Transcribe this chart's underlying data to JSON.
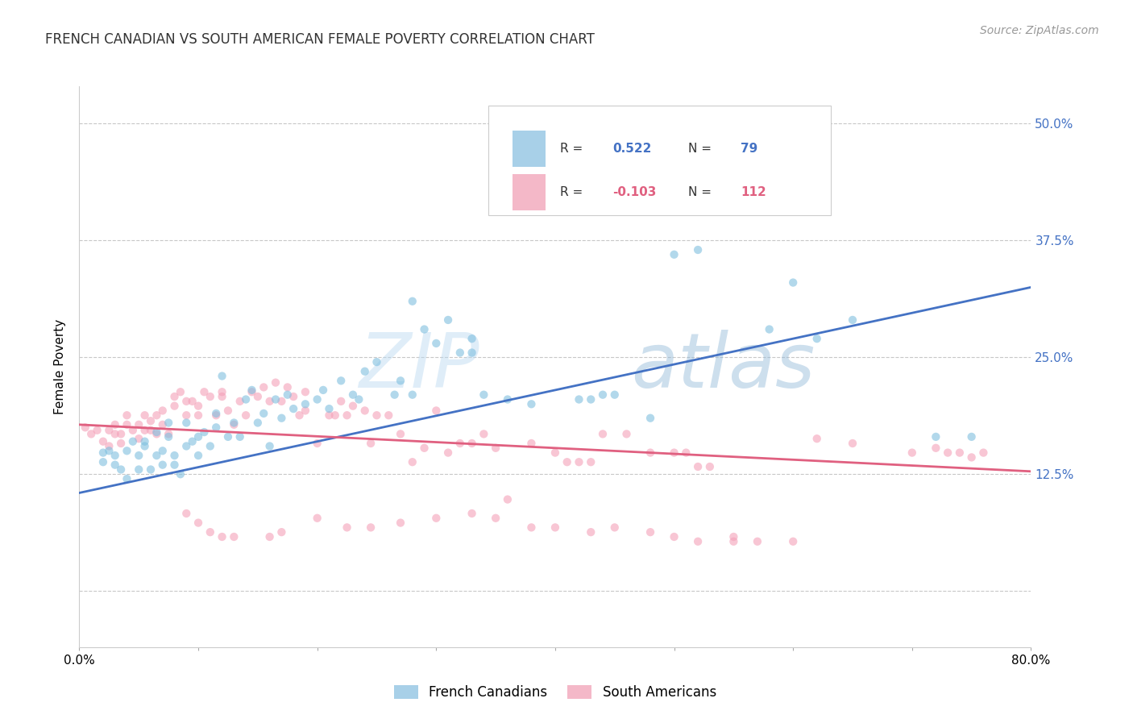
{
  "title": "FRENCH CANADIAN VS SOUTH AMERICAN FEMALE POVERTY CORRELATION CHART",
  "source": "Source: ZipAtlas.com",
  "ylabel": "Female Poverty",
  "xlim": [
    0.0,
    0.8
  ],
  "ylim": [
    -0.06,
    0.54
  ],
  "ytick_positions": [
    0.0,
    0.125,
    0.25,
    0.375,
    0.5
  ],
  "ytick_labels_right": [
    "",
    "12.5%",
    "25.0%",
    "37.5%",
    "50.0%"
  ],
  "xtick_positions": [
    0.0,
    0.1,
    0.2,
    0.3,
    0.4,
    0.5,
    0.6,
    0.7,
    0.8
  ],
  "xtick_labels": [
    "0.0%",
    "",
    "",
    "",
    "",
    "",
    "",
    "",
    "80.0%"
  ],
  "watermark_text": "ZIPatlas",
  "blue_color": "#7fbfdf",
  "pink_color": "#f4a0b8",
  "blue_line_color": "#4472c4",
  "pink_line_color": "#e06080",
  "legend_blue_color": "#a8d0e8",
  "legend_pink_color": "#f4b8c8",
  "grid_color": "#c8c8c8",
  "background_color": "#ffffff",
  "title_fontsize": 12,
  "axis_label_fontsize": 11,
  "tick_fontsize": 11,
  "source_fontsize": 10,
  "dot_size": 55,
  "dot_alpha": 0.6,
  "line_width": 2.0,
  "ytick_right_color": "#4472c4",
  "blue_line_x": [
    0.0,
    0.8
  ],
  "blue_line_y": [
    0.105,
    0.325
  ],
  "pink_line_x": [
    0.0,
    0.8
  ],
  "pink_line_y": [
    0.178,
    0.128
  ],
  "blue_scatter": [
    [
      0.02,
      0.148
    ],
    [
      0.02,
      0.138
    ],
    [
      0.025,
      0.15
    ],
    [
      0.03,
      0.135
    ],
    [
      0.03,
      0.145
    ],
    [
      0.035,
      0.13
    ],
    [
      0.04,
      0.15
    ],
    [
      0.04,
      0.12
    ],
    [
      0.045,
      0.16
    ],
    [
      0.05,
      0.145
    ],
    [
      0.05,
      0.13
    ],
    [
      0.055,
      0.16
    ],
    [
      0.055,
      0.155
    ],
    [
      0.06,
      0.13
    ],
    [
      0.065,
      0.145
    ],
    [
      0.065,
      0.17
    ],
    [
      0.07,
      0.15
    ],
    [
      0.07,
      0.135
    ],
    [
      0.075,
      0.165
    ],
    [
      0.075,
      0.18
    ],
    [
      0.08,
      0.145
    ],
    [
      0.08,
      0.135
    ],
    [
      0.085,
      0.125
    ],
    [
      0.09,
      0.155
    ],
    [
      0.09,
      0.18
    ],
    [
      0.095,
      0.16
    ],
    [
      0.1,
      0.145
    ],
    [
      0.1,
      0.165
    ],
    [
      0.105,
      0.17
    ],
    [
      0.11,
      0.155
    ],
    [
      0.115,
      0.175
    ],
    [
      0.115,
      0.19
    ],
    [
      0.12,
      0.23
    ],
    [
      0.125,
      0.165
    ],
    [
      0.13,
      0.18
    ],
    [
      0.135,
      0.165
    ],
    [
      0.14,
      0.205
    ],
    [
      0.145,
      0.215
    ],
    [
      0.15,
      0.18
    ],
    [
      0.155,
      0.19
    ],
    [
      0.16,
      0.155
    ],
    [
      0.165,
      0.205
    ],
    [
      0.17,
      0.185
    ],
    [
      0.175,
      0.21
    ],
    [
      0.18,
      0.195
    ],
    [
      0.19,
      0.2
    ],
    [
      0.2,
      0.205
    ],
    [
      0.205,
      0.215
    ],
    [
      0.21,
      0.195
    ],
    [
      0.22,
      0.225
    ],
    [
      0.23,
      0.21
    ],
    [
      0.235,
      0.205
    ],
    [
      0.24,
      0.235
    ],
    [
      0.25,
      0.245
    ],
    [
      0.265,
      0.21
    ],
    [
      0.27,
      0.225
    ],
    [
      0.28,
      0.21
    ],
    [
      0.28,
      0.31
    ],
    [
      0.29,
      0.28
    ],
    [
      0.3,
      0.265
    ],
    [
      0.31,
      0.29
    ],
    [
      0.32,
      0.255
    ],
    [
      0.33,
      0.27
    ],
    [
      0.33,
      0.255
    ],
    [
      0.34,
      0.21
    ],
    [
      0.36,
      0.205
    ],
    [
      0.38,
      0.2
    ],
    [
      0.42,
      0.205
    ],
    [
      0.43,
      0.205
    ],
    [
      0.44,
      0.21
    ],
    [
      0.45,
      0.21
    ],
    [
      0.48,
      0.185
    ],
    [
      0.5,
      0.36
    ],
    [
      0.52,
      0.365
    ],
    [
      0.58,
      0.28
    ],
    [
      0.6,
      0.33
    ],
    [
      0.62,
      0.27
    ],
    [
      0.65,
      0.29
    ],
    [
      0.72,
      0.165
    ],
    [
      0.75,
      0.165
    ]
  ],
  "pink_scatter": [
    [
      0.005,
      0.175
    ],
    [
      0.01,
      0.168
    ],
    [
      0.015,
      0.172
    ],
    [
      0.02,
      0.16
    ],
    [
      0.025,
      0.155
    ],
    [
      0.025,
      0.172
    ],
    [
      0.03,
      0.178
    ],
    [
      0.03,
      0.168
    ],
    [
      0.035,
      0.158
    ],
    [
      0.035,
      0.168
    ],
    [
      0.04,
      0.178
    ],
    [
      0.04,
      0.188
    ],
    [
      0.045,
      0.172
    ],
    [
      0.05,
      0.163
    ],
    [
      0.05,
      0.178
    ],
    [
      0.055,
      0.172
    ],
    [
      0.055,
      0.188
    ],
    [
      0.06,
      0.182
    ],
    [
      0.06,
      0.172
    ],
    [
      0.065,
      0.168
    ],
    [
      0.065,
      0.188
    ],
    [
      0.07,
      0.178
    ],
    [
      0.07,
      0.193
    ],
    [
      0.075,
      0.168
    ],
    [
      0.08,
      0.198
    ],
    [
      0.08,
      0.208
    ],
    [
      0.085,
      0.213
    ],
    [
      0.09,
      0.188
    ],
    [
      0.09,
      0.203
    ],
    [
      0.095,
      0.203
    ],
    [
      0.1,
      0.188
    ],
    [
      0.1,
      0.198
    ],
    [
      0.105,
      0.213
    ],
    [
      0.11,
      0.208
    ],
    [
      0.115,
      0.188
    ],
    [
      0.12,
      0.208
    ],
    [
      0.12,
      0.213
    ],
    [
      0.125,
      0.193
    ],
    [
      0.13,
      0.178
    ],
    [
      0.135,
      0.203
    ],
    [
      0.14,
      0.188
    ],
    [
      0.145,
      0.213
    ],
    [
      0.15,
      0.208
    ],
    [
      0.155,
      0.218
    ],
    [
      0.16,
      0.203
    ],
    [
      0.165,
      0.223
    ],
    [
      0.17,
      0.203
    ],
    [
      0.175,
      0.218
    ],
    [
      0.18,
      0.208
    ],
    [
      0.185,
      0.188
    ],
    [
      0.19,
      0.193
    ],
    [
      0.19,
      0.213
    ],
    [
      0.2,
      0.158
    ],
    [
      0.21,
      0.188
    ],
    [
      0.215,
      0.188
    ],
    [
      0.22,
      0.203
    ],
    [
      0.225,
      0.188
    ],
    [
      0.23,
      0.198
    ],
    [
      0.24,
      0.193
    ],
    [
      0.245,
      0.158
    ],
    [
      0.25,
      0.188
    ],
    [
      0.26,
      0.188
    ],
    [
      0.27,
      0.168
    ],
    [
      0.28,
      0.138
    ],
    [
      0.29,
      0.153
    ],
    [
      0.3,
      0.193
    ],
    [
      0.31,
      0.148
    ],
    [
      0.32,
      0.158
    ],
    [
      0.33,
      0.158
    ],
    [
      0.34,
      0.168
    ],
    [
      0.35,
      0.153
    ],
    [
      0.36,
      0.098
    ],
    [
      0.38,
      0.158
    ],
    [
      0.4,
      0.148
    ],
    [
      0.41,
      0.138
    ],
    [
      0.42,
      0.138
    ],
    [
      0.43,
      0.138
    ],
    [
      0.44,
      0.168
    ],
    [
      0.46,
      0.168
    ],
    [
      0.48,
      0.148
    ],
    [
      0.5,
      0.148
    ],
    [
      0.51,
      0.148
    ],
    [
      0.52,
      0.133
    ],
    [
      0.53,
      0.133
    ],
    [
      0.55,
      0.053
    ],
    [
      0.57,
      0.053
    ],
    [
      0.6,
      0.053
    ],
    [
      0.62,
      0.163
    ],
    [
      0.65,
      0.158
    ],
    [
      0.7,
      0.148
    ],
    [
      0.72,
      0.153
    ],
    [
      0.73,
      0.148
    ],
    [
      0.74,
      0.148
    ],
    [
      0.75,
      0.143
    ],
    [
      0.76,
      0.148
    ],
    [
      0.09,
      0.083
    ],
    [
      0.1,
      0.073
    ],
    [
      0.11,
      0.063
    ],
    [
      0.12,
      0.058
    ],
    [
      0.13,
      0.058
    ],
    [
      0.16,
      0.058
    ],
    [
      0.17,
      0.063
    ],
    [
      0.2,
      0.078
    ],
    [
      0.225,
      0.068
    ],
    [
      0.245,
      0.068
    ],
    [
      0.27,
      0.073
    ],
    [
      0.3,
      0.078
    ],
    [
      0.33,
      0.083
    ],
    [
      0.35,
      0.078
    ],
    [
      0.38,
      0.068
    ],
    [
      0.4,
      0.068
    ],
    [
      0.43,
      0.063
    ],
    [
      0.45,
      0.068
    ],
    [
      0.48,
      0.063
    ],
    [
      0.5,
      0.058
    ],
    [
      0.52,
      0.053
    ],
    [
      0.55,
      0.058
    ]
  ]
}
